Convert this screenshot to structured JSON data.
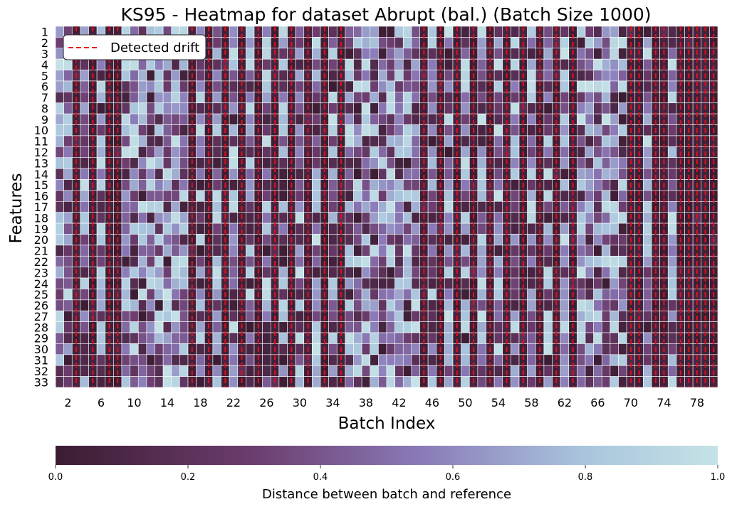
{
  "chart_data": {
    "type": "heatmap",
    "title": "KS95 - Heatmap for dataset Abrupt (bal.) (Batch Size 1000)",
    "xlabel": "Batch Index",
    "ylabel": "Features",
    "x": [
      1,
      2,
      3,
      4,
      5,
      6,
      7,
      8,
      9,
      10,
      11,
      12,
      13,
      14,
      15,
      16,
      17,
      18,
      19,
      20,
      21,
      22,
      23,
      24,
      25,
      26,
      27,
      28,
      29,
      30,
      31,
      32,
      33,
      34,
      35,
      36,
      37,
      38,
      39,
      40,
      41,
      42,
      43,
      44,
      45,
      46,
      47,
      48,
      49,
      50,
      51,
      52,
      53,
      54,
      55,
      56,
      57,
      58,
      59,
      60,
      61,
      62,
      63,
      64,
      65,
      66,
      67,
      68,
      69,
      70,
      71,
      72,
      73,
      74,
      75,
      76,
      77,
      78,
      79,
      80
    ],
    "x_tick_labels": [
      "2",
      "6",
      "10",
      "14",
      "18",
      "22",
      "26",
      "30",
      "34",
      "38",
      "42",
      "46",
      "50",
      "54",
      "58",
      "62",
      "66",
      "70",
      "74",
      "78"
    ],
    "y_tick_labels": [
      "1",
      "2",
      "3",
      "4",
      "5",
      "6",
      "7",
      "8",
      "9",
      "10",
      "11",
      "12",
      "13",
      "14",
      "15",
      "16",
      "17",
      "18",
      "19",
      "20",
      "21",
      "22",
      "23",
      "24",
      "25",
      "26",
      "27",
      "28",
      "29",
      "30",
      "31",
      "32",
      "33"
    ],
    "drift_columns": [
      3,
      5,
      7,
      8,
      17,
      19,
      21,
      23,
      25,
      27,
      29,
      31,
      33,
      35,
      45,
      47,
      49,
      51,
      53,
      55,
      57,
      59,
      61,
      63,
      70,
      71,
      73,
      74,
      76,
      77,
      78,
      79,
      80
    ],
    "z_range": [
      0.0,
      1.0
    ],
    "colorbar": {
      "label": "Distance between batch and reference",
      "ticks": [
        "0.0",
        "0.2",
        "0.4",
        "0.6",
        "0.8",
        "1.0"
      ],
      "colors": [
        "#3b1c32",
        "#6c3d6e",
        "#8a7ab8",
        "#a9c5dd",
        "#c5e3e6"
      ]
    },
    "legend": {
      "label": "Detected drift",
      "color": "#e3101a",
      "placement": "top-left"
    },
    "grid": false,
    "values_note": ""
  }
}
